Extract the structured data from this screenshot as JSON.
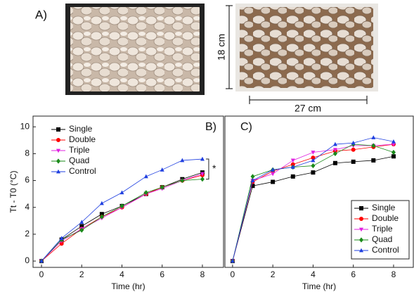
{
  "panel_a": {
    "label": "A)",
    "height_label": "18 cm",
    "width_label": "27 cm"
  },
  "chart_data": [
    {
      "type": "line",
      "label": "B)",
      "xlabel": "Time (hr)",
      "ylabel": "Tt - T0 (°C)",
      "annotation": "*",
      "x": [
        0,
        1,
        2,
        3,
        4,
        5.2,
        6,
        7,
        8
      ],
      "xlim": [
        -0.42,
        9.05
      ],
      "xticks": [
        0,
        2,
        4,
        6,
        8
      ],
      "ylim": [
        -0.47,
        10.8
      ],
      "yticks": [
        0,
        2,
        4,
        6,
        8,
        10
      ],
      "legend": "upper-left",
      "series": [
        {
          "name": "Single",
          "color": "#000000",
          "marker": "square",
          "values": [
            0,
            1.6,
            2.6,
            3.5,
            4.1,
            5.0,
            5.5,
            6.1,
            6.6
          ]
        },
        {
          "name": "Double",
          "color": "#ff0000",
          "marker": "circle",
          "values": [
            0,
            1.3,
            2.4,
            3.3,
            4.0,
            5.0,
            5.5,
            6.0,
            6.4
          ]
        },
        {
          "name": "Triple",
          "color": "#e020e0",
          "marker": "triangle-down",
          "values": [
            0,
            1.5,
            2.4,
            3.2,
            4.0,
            5.0,
            5.4,
            6.0,
            6.5
          ]
        },
        {
          "name": "Quad",
          "color": "#1a8a1a",
          "marker": "diamond",
          "values": [
            0,
            1.6,
            2.3,
            3.3,
            4.1,
            5.1,
            5.5,
            6.0,
            6.1
          ]
        },
        {
          "name": "Control",
          "color": "#1f3fe0",
          "marker": "triangle-up",
          "values": [
            0,
            1.7,
            2.9,
            4.3,
            5.1,
            6.3,
            6.8,
            7.5,
            7.6
          ]
        }
      ]
    },
    {
      "type": "line",
      "label": "C)",
      "xlabel": "Time (hr)",
      "x": [
        0,
        1,
        2,
        3,
        4,
        5.1,
        6,
        7,
        8
      ],
      "xlim": [
        -0.38,
        8.98
      ],
      "xticks": [
        0,
        2,
        4,
        6,
        8
      ],
      "ylim": [
        -0.47,
        10.8
      ],
      "legend": "lower-right",
      "series": [
        {
          "name": "Single",
          "color": "#000000",
          "marker": "square",
          "values": [
            0,
            5.6,
            5.9,
            6.3,
            6.6,
            7.3,
            7.4,
            7.5,
            7.8
          ]
        },
        {
          "name": "Double",
          "color": "#ff0000",
          "marker": "circle",
          "values": [
            0,
            5.9,
            6.7,
            7.2,
            7.7,
            8.2,
            8.3,
            8.5,
            8.7
          ]
        },
        {
          "name": "Triple",
          "color": "#e020e0",
          "marker": "triangle-down",
          "values": [
            0,
            6.0,
            6.5,
            7.5,
            8.1,
            8.3,
            8.6,
            8.6,
            8.7
          ]
        },
        {
          "name": "Quad",
          "color": "#1a8a1a",
          "marker": "diamond",
          "values": [
            0,
            6.3,
            6.8,
            7.0,
            7.1,
            8.0,
            8.7,
            8.6,
            8.1
          ]
        },
        {
          "name": "Control",
          "color": "#1f3fe0",
          "marker": "triangle-up",
          "values": [
            0,
            6.0,
            6.8,
            7.0,
            7.5,
            8.7,
            8.8,
            9.2,
            8.9
          ]
        }
      ]
    }
  ]
}
